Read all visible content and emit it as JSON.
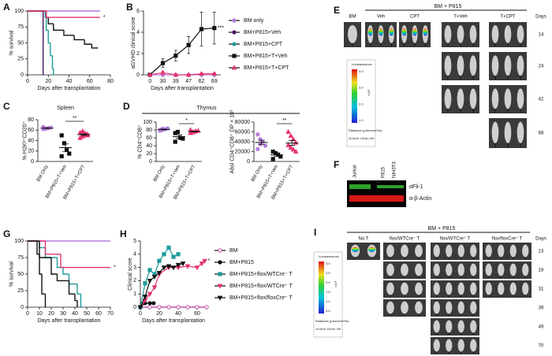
{
  "figure": {
    "panel_labels": [
      "A",
      "B",
      "C",
      "D",
      "E",
      "F",
      "G",
      "H",
      "I"
    ],
    "thymus_label": "Thymus"
  },
  "chart_data": [
    {
      "type": "survival",
      "xlabel": "Days after transplantation",
      "ylabel": "% survival",
      "xlim": [
        0,
        80
      ],
      "xticks": [
        0,
        20,
        40,
        60,
        80
      ],
      "ylim": [
        0,
        100
      ],
      "yticks": [
        0,
        25,
        50,
        75,
        100
      ],
      "annotation": "*",
      "series": [
        {
          "color": "#b57bde",
          "x": [
            0,
            70
          ],
          "values": [
            100,
            100
          ]
        },
        {
          "color": "#4a1565",
          "x": [
            0,
            15
          ],
          "values": [
            100,
            0
          ]
        },
        {
          "color": "#1f9b9b",
          "x": [
            0,
            17,
            18,
            20,
            22,
            24,
            25
          ],
          "values": [
            100,
            90,
            70,
            50,
            30,
            10,
            0
          ]
        },
        {
          "color": "#111111",
          "x": [
            0,
            18,
            20,
            25,
            35,
            45,
            55,
            62,
            68
          ],
          "values": [
            100,
            90,
            80,
            70,
            62,
            55,
            48,
            42,
            42
          ]
        },
        {
          "color": "#e5326e",
          "x": [
            0,
            18,
            70
          ],
          "values": [
            100,
            90,
            90
          ]
        }
      ]
    },
    {
      "type": "line",
      "xlabel": "Days after transplantation",
      "ylabel": "aGVHD clinical score",
      "categories": [
        "0",
        "30",
        "39",
        "47",
        "62",
        "69"
      ],
      "ylim": [
        0,
        6
      ],
      "yticks": [
        0,
        2,
        4,
        6
      ],
      "legend": "right",
      "annotation": "***",
      "series": [
        {
          "name": "BM only",
          "color": "#b57bde",
          "marker": "circle",
          "values": [
            0,
            0,
            0,
            0,
            0,
            0
          ]
        },
        {
          "name": "BM+P815+Veh",
          "color": "#4a1565",
          "marker": "circle",
          "values": [
            0,
            null,
            null,
            null,
            null,
            null
          ]
        },
        {
          "name": "BM+P815+CPT",
          "color": "#1f9b9b",
          "marker": "circle",
          "values": [
            0,
            null,
            null,
            null,
            null,
            null
          ]
        },
        {
          "name": "BM+P815+T+Veh",
          "color": "#111111",
          "marker": "square",
          "values": [
            0,
            1.1,
            1.8,
            2.8,
            4.3,
            4.4
          ],
          "errors": [
            0,
            0.4,
            0.5,
            0.8,
            1.6,
            1.5
          ]
        },
        {
          "name": "BM+P815+T+CPT",
          "color": "#e5326e",
          "marker": "triangle",
          "values": [
            0,
            0.2,
            0,
            0,
            0.1,
            0.1
          ],
          "errors": [
            0,
            0.15,
            0,
            0,
            0.1,
            0.1
          ]
        }
      ]
    },
    {
      "type": "dotplot",
      "title": "Spleen",
      "ylabel": "% H2Kᵇ⁺CD20⁺",
      "categories": [
        "BM Only",
        "BM+P815+T+Veh",
        "BM+P815+T+CPT"
      ],
      "colors": [
        "#b57bde",
        "#111111",
        "#e5326e"
      ],
      "markers": [
        "circle",
        "square",
        "triangle"
      ],
      "points": [
        [
          62,
          63,
          64,
          65,
          66,
          63
        ],
        [
          50,
          35,
          22,
          15,
          10
        ],
        [
          45,
          48,
          50,
          52,
          55,
          58,
          54,
          50
        ]
      ],
      "means": [
        63.8,
        26.4,
        51.5
      ],
      "sems": [
        0.6,
        7.2,
        1.5
      ],
      "ylim": [
        0,
        80
      ],
      "yticks": [
        0,
        20,
        40,
        60,
        80
      ],
      "annotation": "**"
    },
    {
      "type": "dotplot",
      "ylabel": "% CD4⁺CD8⁺",
      "categories": [
        "BM Only",
        "BM+P815+T+Veh",
        "BM+P815+T+CPT"
      ],
      "colors": [
        "#b57bde",
        "#111111",
        "#e5326e"
      ],
      "markers": [
        "circle",
        "square",
        "triangle"
      ],
      "points": [
        [
          78,
          80,
          82,
          84,
          80,
          83
        ],
        [
          72,
          75,
          60,
          58,
          50
        ],
        [
          72,
          74,
          76,
          78,
          80,
          75,
          77
        ]
      ],
      "means": [
        81.2,
        63,
        76
      ],
      "sems": [
        0.9,
        4.6,
        1
      ],
      "ylim": [
        0,
        100
      ],
      "yticks": [
        0,
        20,
        40,
        60,
        80,
        100
      ],
      "annotation": "*"
    },
    {
      "type": "dotplot",
      "ylabel": "Absl CD4⁺CD8⁺ DP × 10³",
      "categories": [
        "BM Only",
        "BM+P815+T+Veh",
        "BM+P815+T+CPT"
      ],
      "colors": [
        "#b57bde",
        "#111111",
        "#e5326e"
      ],
      "markers": [
        "circle",
        "square",
        "triangle"
      ],
      "points": [
        [
          55000,
          45000,
          40000,
          32000,
          25000,
          35000
        ],
        [
          20000,
          17000,
          14000,
          10000,
          5000
        ],
        [
          60000,
          52000,
          45000,
          38000,
          33000,
          28000,
          24000,
          20000
        ]
      ],
      "means": [
        38700,
        13200,
        37500
      ],
      "sems": [
        4500,
        2600,
        4800
      ],
      "ylim": [
        0,
        80000
      ],
      "yticks": [
        0,
        20000,
        40000,
        60000,
        80000
      ],
      "annotation": "**"
    },
    {
      "type": "survival",
      "xlabel": "Days after transplantation",
      "ylabel": "% survival",
      "xlim": [
        0,
        70
      ],
      "xticks": [
        0,
        10,
        20,
        30,
        40,
        50,
        60,
        70
      ],
      "ylim": [
        0,
        100
      ],
      "yticks": [
        0,
        25,
        50,
        75,
        100
      ],
      "annotation": "*",
      "series": [
        {
          "color": "#b57bde",
          "x": [
            0,
            70
          ],
          "values": [
            100,
            100
          ]
        },
        {
          "color": "#111111",
          "x": [
            0,
            8,
            10,
            12,
            15
          ],
          "values": [
            100,
            80,
            50,
            20,
            0
          ]
        },
        {
          "color": "#1f9b9b",
          "x": [
            0,
            10,
            15,
            25,
            30,
            35,
            42,
            45
          ],
          "values": [
            100,
            90,
            75,
            60,
            50,
            35,
            20,
            0
          ]
        },
        {
          "color": "#e5326e",
          "x": [
            0,
            15,
            28,
            70
          ],
          "values": [
            100,
            80,
            60,
            60
          ]
        },
        {
          "color": "#111111",
          "x": [
            0,
            10,
            20,
            25,
            35,
            40,
            42
          ],
          "values": [
            100,
            75,
            50,
            40,
            20,
            10,
            0
          ]
        }
      ]
    },
    {
      "type": "line",
      "xlabel": "Days after transplantation",
      "ylabel": "Clinical score",
      "xlim": [
        0,
        70
      ],
      "xticks": [
        0,
        20,
        40,
        60
      ],
      "ylim": [
        0,
        5
      ],
      "yticks": [
        0,
        1,
        2,
        3,
        4,
        5
      ],
      "legend": "right",
      "annotation": "*",
      "series": [
        {
          "name": "BM",
          "color": "#b5338e",
          "marker": "circle",
          "filled": false,
          "x": [
            0,
            10,
            20,
            30,
            40,
            50,
            60,
            70
          ],
          "values": [
            0,
            0,
            0,
            0,
            0,
            0,
            0,
            0
          ]
        },
        {
          "name": "BM+P815",
          "color": "#111111",
          "marker": "circle",
          "x": [
            0,
            5,
            10,
            14
          ],
          "values": [
            0,
            0.3,
            0.3,
            0.3
          ]
        },
        {
          "name": "BM+P815+flox/WTCre⁻ T",
          "color": "#1f9b9b",
          "marker": "square",
          "x": [
            0,
            5,
            10,
            15,
            20,
            25,
            30,
            35,
            40
          ],
          "values": [
            0,
            1.8,
            2.8,
            2.5,
            3.5,
            4,
            4.5,
            3.8,
            4
          ]
        },
        {
          "name": "BM+P815+flox/WTCre⁺ T",
          "color": "#e5326e",
          "marker": "triangle-down",
          "x": [
            0,
            5,
            10,
            15,
            20,
            30,
            40,
            50,
            60,
            65,
            68
          ],
          "values": [
            0,
            0.5,
            1,
            1.5,
            2.5,
            3,
            3,
            3.1,
            3,
            3.3,
            3.5
          ]
        },
        {
          "name": "BM+P815+flox/floxCre⁺ T",
          "color": "#111111",
          "marker": "triangle-down",
          "x": [
            0,
            5,
            10,
            15,
            20,
            25,
            30,
            35,
            40,
            45
          ],
          "values": [
            0,
            0.8,
            2,
            2.3,
            2.6,
            3,
            3.1,
            3,
            3.2,
            3.3
          ]
        }
      ]
    }
  ],
  "panel_e": {
    "group": "BM + P815",
    "columns": [
      "BM",
      "Veh",
      "CPT",
      "T+Veh",
      "T+CPT"
    ],
    "days_label": "Days",
    "days": [
      "14",
      "24",
      "42",
      "68"
    ],
    "colorbar": {
      "title": "Luminescence",
      "unit": "×10⁶",
      "ticks": [
        "4.0",
        "3.0",
        "2.0",
        "1.0"
      ],
      "footer": "Radiance (p/sec/cm²/sr)",
      "scale": "Color Scale Min = 2.40e5 Max = 4.50e6"
    }
  },
  "panel_f": {
    "lanes": [
      "Jurkat",
      "P815",
      "NIH3T3"
    ],
    "bands": [
      "αFli-1",
      "α-β-Actin"
    ]
  },
  "panel_i": {
    "group": "BM + P815",
    "columns": [
      "No T",
      "flox/WTCre⁻ T",
      "flox/WTCre⁺ T",
      "flox/floxCre⁺ T"
    ],
    "days_label": "Days",
    "days": [
      "13",
      "18",
      "31",
      "39",
      "49",
      "70"
    ],
    "colorbar": {
      "title": "Luminescence",
      "unit": "×10⁶",
      "ticks": [
        "3.0",
        "2.5",
        "2.0",
        "1.5",
        "1.0",
        "0.5"
      ],
      "footer": "Radiance (p/sec/cm²/sr)",
      "scale": "Color Scale Min = 5.00e4 Max = 3.00e6"
    }
  }
}
